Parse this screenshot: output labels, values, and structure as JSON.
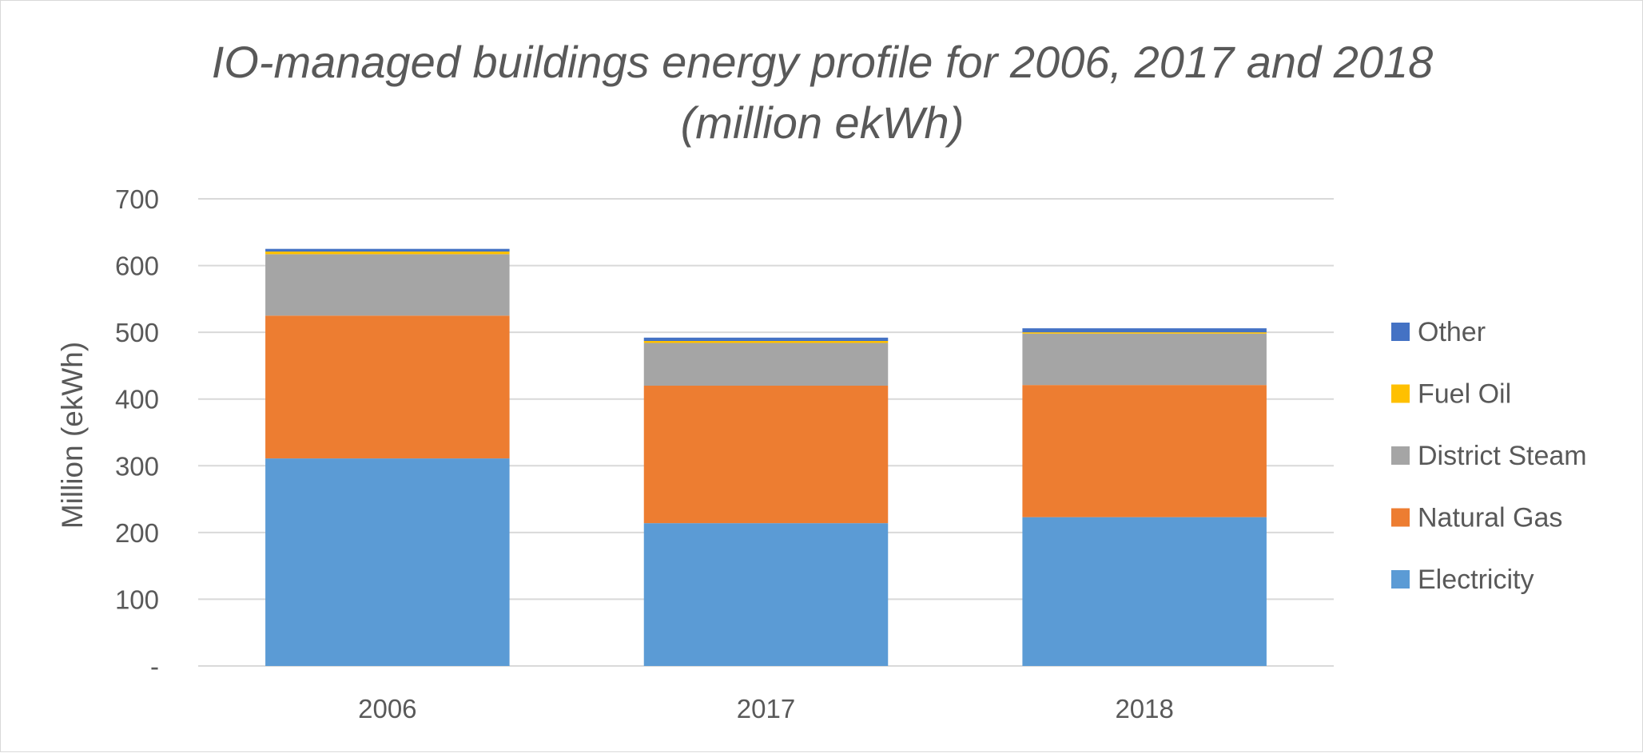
{
  "chart_data": {
    "type": "bar",
    "stacked": true,
    "title": "IO-managed buildings energy profile for 2006, 2017 and 2018",
    "subtitle": "(million ekWh)",
    "xlabel": "",
    "ylabel": "Million (ekWh)",
    "ylim": [
      0,
      700
    ],
    "yticks": [
      0,
      100,
      200,
      300,
      400,
      500,
      600,
      700
    ],
    "ytick_labels": [
      "-",
      "100",
      "200",
      "300",
      "400",
      "500",
      "600",
      "700"
    ],
    "grid": true,
    "legend_position": "right",
    "categories": [
      "2006",
      "2017",
      "2018"
    ],
    "series": [
      {
        "name": "Electricity",
        "color": "#5b9bd5",
        "values": [
          311,
          214,
          223
        ]
      },
      {
        "name": "Natural Gas",
        "color": "#ed7d31",
        "values": [
          214,
          206,
          198
        ]
      },
      {
        "name": "District Steam",
        "color": "#a5a5a5",
        "values": [
          92,
          64,
          77
        ]
      },
      {
        "name": "Fuel Oil",
        "color": "#ffc000",
        "values": [
          4,
          3,
          2
        ]
      },
      {
        "name": "Other",
        "color": "#4472c4",
        "values": [
          4,
          5,
          6
        ]
      }
    ]
  }
}
